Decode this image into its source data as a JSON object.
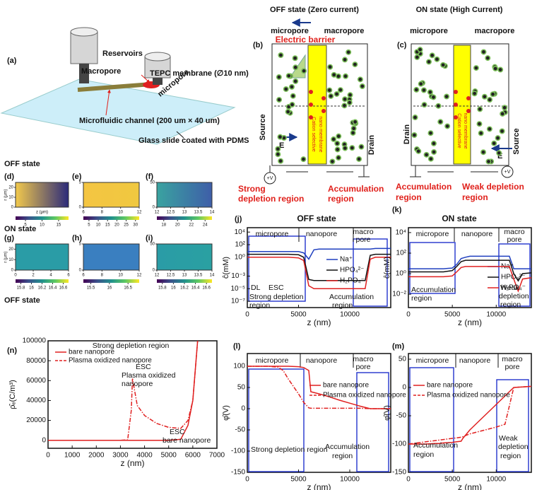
{
  "panel_a": {
    "label": "(a)",
    "reservoirs": "Reservoirs",
    "macropore": "Macropore",
    "membrane": "TEPC membrane (∅10 nm)",
    "micropore": "micropore",
    "channel": "Microfluidic channel (200 um × 40 um)",
    "slide": "Glass slide coated with PDMS"
  },
  "panel_b": {
    "title": "OFF state (Zero current)",
    "label": "(b)",
    "micropore": "micropore",
    "macropore": "macropore",
    "barrier": "Electric barrier",
    "source": "Source",
    "drain": "Drain",
    "field": "E",
    "voltage": "+V",
    "membrane": [
      "Cation selective",
      "nano membrane"
    ],
    "left_region": [
      "Strong",
      "depletion region"
    ],
    "right_region": [
      "Accumulation",
      "region"
    ]
  },
  "panel_c": {
    "title": "ON state (High Current)",
    "label": "(c)",
    "micropore": "micropore",
    "macropore": "macropore",
    "drain": "Drain",
    "source": "Source",
    "field": "E",
    "voltage": "+V",
    "membrane": [
      "Cation selective",
      "nano membrane"
    ],
    "left_region": [
      "Accumulation",
      "region"
    ],
    "right_region": [
      "Weak depletion",
      "region"
    ]
  },
  "sections": [
    "OFF state",
    "ON state",
    "OFF state"
  ],
  "heatmaps": [
    {
      "label": "(d)",
      "ylabel": "r (μm)",
      "xlabel": "z (μm)",
      "xlim": [
        0,
        6
      ],
      "ylim": [
        0,
        25
      ],
      "yticks": [
        0,
        10,
        20
      ],
      "clim": [
        2,
        18
      ],
      "cticks": [
        5,
        10,
        15
      ],
      "colors": [
        "#f2c94c",
        "#2b2a7a"
      ]
    },
    {
      "label": "(e)",
      "xlim": [
        6,
        12
      ],
      "xticks": [
        6,
        8,
        10,
        12
      ],
      "ylim": [
        0,
        5
      ],
      "yticks": [
        0,
        5
      ],
      "clim": [
        2,
        32
      ],
      "cticks": [
        5,
        10,
        15,
        20,
        25,
        30
      ],
      "colors": [
        "#f4c542",
        "#f0c840"
      ]
    },
    {
      "label": "(f)",
      "xlim": [
        12,
        14
      ],
      "xticks": [
        12,
        12.5,
        13,
        13.5,
        14
      ],
      "ylim": [
        0,
        50
      ],
      "yticks": [
        0,
        50
      ],
      "clim": [
        17,
        25
      ],
      "cticks": [
        18,
        20,
        22,
        24
      ],
      "colors": [
        "#3aa3a0",
        "#3e5ea8"
      ]
    },
    {
      "label": "(g)",
      "ylabel": "r (μm)",
      "xlim": [
        0,
        6
      ],
      "xticks": [
        0,
        2,
        4,
        6
      ],
      "ylim": [
        0,
        25
      ],
      "yticks": [
        0,
        10,
        20
      ],
      "clim": [
        15.7,
        16.7
      ],
      "cticks": [
        15.8,
        16,
        16.2,
        16.4,
        16.6
      ],
      "colors": [
        "#2a9ca6",
        "#2a9ca6"
      ]
    },
    {
      "label": "(h)",
      "xlim": [
        6,
        12
      ],
      "xticks": [
        6,
        8,
        10,
        12
      ],
      "ylim": [
        0,
        5
      ],
      "yticks": [
        0,
        5
      ],
      "clim": [
        15.3,
        16.8
      ],
      "cticks": [
        15.5,
        16,
        16.5
      ],
      "colors": [
        "#3a7fc0",
        "#3a7fc0"
      ]
    },
    {
      "label": "(i)",
      "xlim": [
        12,
        14
      ],
      "xticks": [
        12,
        12.5,
        13,
        13.5,
        14
      ],
      "ylim": [
        0,
        50
      ],
      "yticks": [
        0,
        50
      ],
      "clim": [
        15.7,
        16.7
      ],
      "cticks": [
        15.8,
        16,
        16.2,
        16.4,
        16.6
      ],
      "colors": [
        "#2a9ca6",
        "#2aa0a2"
      ]
    }
  ],
  "chart_data": [
    {
      "type": "line",
      "label": "(j)",
      "title": "OFF state",
      "xlabel": "z (nm)",
      "ylabel": "ĉ(mM)",
      "log_y": true,
      "xlim": [
        0,
        14000
      ],
      "xticks": [
        0,
        5000,
        10000
      ],
      "ylim": [
        1e-08,
        50000
      ],
      "yticks": [
        {
          "value": 10000,
          "label": "10⁴"
        },
        {
          "value": 100,
          "label": "10²"
        },
        {
          "value": 1,
          "label": "10⁰"
        },
        {
          "value": 0.001,
          "label": "10⁻³"
        },
        {
          "value": 1e-05,
          "label": "10⁻⁵"
        },
        {
          "value": 1e-07,
          "label": "10⁻⁷"
        }
      ],
      "x": [
        0,
        1000,
        2000,
        3000,
        4000,
        5000,
        5500,
        6000,
        6500,
        7000,
        8000,
        9000,
        10000,
        11000,
        11500,
        12000,
        12500,
        13000,
        14000
      ],
      "series": [
        {
          "name": "Na⁺",
          "color": "#1f3fbf",
          "values": [
            8,
            8,
            8,
            8,
            8,
            8,
            5,
            0.5,
            15,
            20,
            20,
            20,
            20,
            20,
            20,
            20,
            25,
            25,
            25
          ]
        },
        {
          "name": "HPO₄²⁻",
          "color": "#111111",
          "values": [
            3,
            3,
            3,
            3,
            3,
            2.5,
            1,
            0.0003,
            0.0002,
            0.0002,
            0.0002,
            0.0002,
            0.0002,
            0.0002,
            0.0002,
            2,
            3,
            3,
            3
          ]
        },
        {
          "name": "H₂PO₄⁻",
          "color": "#e02020",
          "values": [
            1,
            1,
            1,
            1,
            1,
            0.8,
            0.3,
            3e-05,
            1e-05,
            1e-05,
            1e-05,
            1e-05,
            1e-05,
            1e-05,
            1e-05,
            0.5,
            1,
            1,
            1
          ]
        }
      ],
      "annotations": [
        "micropore",
        "nanopore",
        "macro",
        "pore",
        "DL",
        "ESC",
        "Strong depletion",
        "region",
        "Accumulation",
        "region"
      ]
    },
    {
      "type": "line",
      "label": "(k)",
      "title": "ON state",
      "xlabel": "z (nm)",
      "ylabel": "ĉ(mM)",
      "log_y": true,
      "xlim": [
        0,
        14000
      ],
      "xticks": [
        0,
        5000,
        10000
      ],
      "ylim": [
        0.0005,
        30000
      ],
      "yticks": [
        {
          "value": 10000,
          "label": "10⁴"
        },
        {
          "value": 100,
          "label": "10²"
        },
        {
          "value": 1,
          "label": "10⁰"
        },
        {
          "value": 0.01,
          "label": "10⁻²"
        }
      ],
      "x": [
        0,
        1000,
        2000,
        3000,
        4000,
        5000,
        5500,
        6000,
        6500,
        7000,
        8000,
        9000,
        10000,
        11000,
        11500,
        12000,
        12500,
        13000,
        14000
      ],
      "series": [
        {
          "name": "Na⁺",
          "color": "#1f3fbf",
          "values": [
            3,
            3,
            3,
            3,
            3,
            3.5,
            8,
            30,
            40,
            50,
            50,
            50,
            50,
            50,
            50,
            3,
            3,
            3,
            3
          ]
        },
        {
          "name": "HPO₄²⁻",
          "color": "#111111",
          "values": [
            1.5,
            1.5,
            1.5,
            1.5,
            1.5,
            2,
            5,
            15,
            20,
            20,
            20,
            20,
            20,
            20,
            20,
            1,
            0.2,
            1,
            1.2
          ]
        },
        {
          "name": "H₂PO₄⁻",
          "color": "#e02020",
          "values": [
            0.5,
            0.5,
            0.5,
            0.5,
            0.5,
            0.6,
            1.5,
            4,
            5,
            5,
            5,
            5,
            5,
            5,
            5,
            0.3,
            0.02,
            0.3,
            0.4
          ]
        }
      ],
      "annotations": [
        "micropore",
        "nanopore",
        "macro",
        "pore",
        "Accumulation",
        "region",
        "Weak",
        "depletion",
        "region"
      ]
    },
    {
      "type": "line",
      "label": "(l)",
      "xlabel": "z (nm)",
      "ylabel": "φ̂(V)",
      "xlim": [
        0,
        14000
      ],
      "xticks": [
        0,
        5000,
        10000
      ],
      "ylim": [
        -150,
        130
      ],
      "yticks": [
        -150,
        -100,
        -50,
        0,
        50,
        100
      ],
      "x": [
        0,
        1000,
        2000,
        3000,
        3500,
        4000,
        5000,
        5500,
        6000,
        6200,
        7000,
        8000,
        9000,
        10000,
        11000,
        12000,
        13000,
        14000
      ],
      "series": [
        {
          "name": "bare nanopore",
          "color": "#e02020",
          "values": [
            100,
            100,
            100,
            100,
            100,
            100,
            99,
            97,
            90,
            40,
            35,
            28,
            20,
            13,
            6,
            0,
            0,
            0
          ]
        },
        {
          "name": "Plasma oxidized nanopore",
          "color": "#e02020",
          "dash": true,
          "values": [
            100,
            100,
            100,
            98,
            90,
            70,
            35,
            15,
            2,
            1,
            1,
            1,
            1,
            1,
            1,
            0,
            0,
            0
          ]
        }
      ],
      "annotations": [
        "micropore",
        "nanopore",
        "macro",
        "pore",
        "Strong depletion region",
        "Accumulation",
        "region"
      ]
    },
    {
      "type": "line",
      "label": "(m)",
      "xlabel": "z (nm)",
      "ylabel": "φ̂(V)",
      "xlim": [
        0,
        14000
      ],
      "xticks": [
        0,
        5000,
        10000
      ],
      "ylim": [
        -150,
        60
      ],
      "yticks": [
        -150,
        -100,
        -50,
        0,
        50
      ],
      "x": [
        0,
        1000,
        2000,
        3000,
        3500,
        4000,
        5000,
        5500,
        6000,
        6200,
        7000,
        8000,
        9000,
        10000,
        11000,
        12000,
        13000,
        14000
      ],
      "series": [
        {
          "name": "bare nanopore",
          "color": "#e02020",
          "values": [
            -100,
            -100,
            -100,
            -99,
            -99,
            -98,
            -97,
            -96,
            -95,
            -90,
            -75,
            -60,
            -45,
            -30,
            -15,
            0,
            1,
            2
          ]
        },
        {
          "name": "Plasma oxidized nanopore",
          "color": "#e02020",
          "dash": true,
          "values": [
            -100,
            -98,
            -96,
            -94,
            -93,
            -92,
            -90,
            -89,
            -88,
            -87,
            -82,
            -78,
            -74,
            -70,
            -65,
            0,
            1,
            2
          ]
        }
      ],
      "annotations": [
        "micropore",
        "nanopore",
        "macro",
        "pore",
        "Accumulation",
        "region",
        "Weak",
        "depletion",
        "region"
      ]
    },
    {
      "type": "line",
      "label": "(n)",
      "xlabel": "z (nm)",
      "ylabel": "ρ̂ₑ(C/m³)",
      "xlim": [
        0,
        7000
      ],
      "xticks": [
        0,
        1000,
        2000,
        3000,
        4000,
        5000,
        6000,
        7000
      ],
      "ylim": [
        -8000,
        100000
      ],
      "yticks": [
        0,
        20000,
        40000,
        60000,
        80000,
        100000
      ],
      "x": [
        0,
        3000,
        3300,
        3450,
        3500,
        3700,
        4000,
        4500,
        5000,
        5500,
        5800,
        6000,
        6200
      ],
      "series": [
        {
          "name": "bare nanopore",
          "color": "#e02020",
          "values": [
            0,
            0,
            0,
            0,
            0,
            0,
            0,
            0,
            0,
            1000,
            15000,
            40000,
            100000
          ]
        },
        {
          "name": "Plasma oxidized nanopore",
          "color": "#e02020",
          "dash": true,
          "values": [
            0,
            0,
            500,
            30000,
            62000,
            35000,
            25000,
            17000,
            13000,
            12000,
            20000,
            40000,
            100000
          ]
        }
      ],
      "annotations": [
        "Strong depletion region",
        "ESC",
        "Plasma oxidized",
        "nanopore",
        "ESC",
        "bare nanopore"
      ]
    }
  ]
}
